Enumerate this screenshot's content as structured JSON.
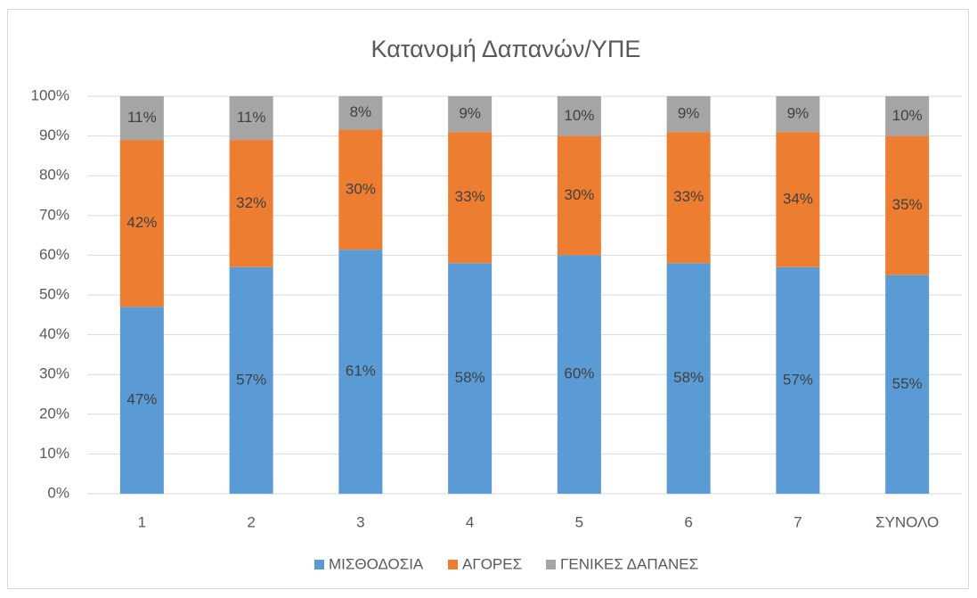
{
  "chart_data": {
    "type": "stacked_bar",
    "title": "Κατανομή Δαπανών/ΥΠΕ",
    "categories": [
      "1",
      "2",
      "3",
      "4",
      "5",
      "6",
      "7",
      "ΣΥΝΟΛΟ"
    ],
    "series": [
      {
        "name": "ΜΙΣΘΟΔΟΣΙΑ",
        "color": "#5b9bd5",
        "values": [
          47,
          57,
          61.4,
          58,
          60,
          58,
          57,
          55
        ],
        "value_labels": [
          "47%",
          "57%",
          "61%",
          "58%",
          "60%",
          "58%",
          "57%",
          "55%"
        ]
      },
      {
        "name": "ΑΓΟΡΕΣ",
        "color": "#ed7d31",
        "values": [
          42,
          32,
          30.2,
          33,
          30,
          33,
          34,
          35
        ],
        "value_labels": [
          "42%",
          "32%",
          "30%",
          "33%",
          "30%",
          "33%",
          "34%",
          "35%"
        ]
      },
      {
        "name": "ΓΕΝΙΚΕΣ ΔΑΠΑΝΕΣ",
        "color": "#a5a5a5",
        "values": [
          11,
          11,
          8.4,
          9,
          10,
          9,
          9,
          10
        ],
        "value_labels": [
          "11%",
          "11%",
          "8%",
          "9%",
          "10%",
          "9%",
          "9%",
          "10%"
        ]
      }
    ],
    "ylim": [
      0,
      100
    ],
    "yticks": [
      {
        "value": 0,
        "label": "0%"
      },
      {
        "value": 10,
        "label": "10%"
      },
      {
        "value": 20,
        "label": "20%"
      },
      {
        "value": 30,
        "label": "30%"
      },
      {
        "value": 40,
        "label": "40%"
      },
      {
        "value": 50,
        "label": "50%"
      },
      {
        "value": 60,
        "label": "60%"
      },
      {
        "value": 70,
        "label": "70%"
      },
      {
        "value": 80,
        "label": "80%"
      },
      {
        "value": 90,
        "label": "90%"
      },
      {
        "value": 100,
        "label": "100%"
      }
    ],
    "grid": true,
    "legend": "bottom"
  }
}
